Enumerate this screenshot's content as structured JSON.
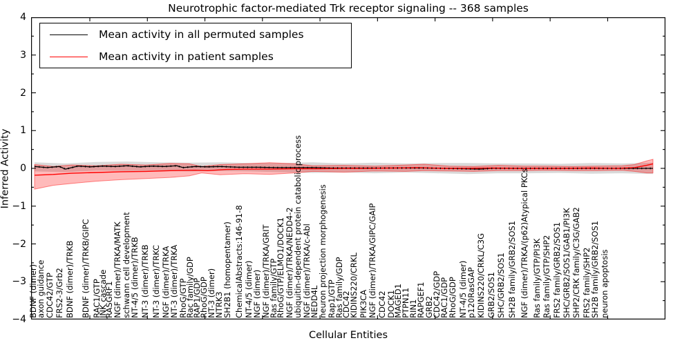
{
  "title": "Neurotrophic factor-mediated Trk receptor signaling -- 368 samples",
  "legend": {
    "items": [
      {
        "label": "Mean activity in all permuted samples",
        "color": "#000000"
      },
      {
        "label": "Mean activity in patient samples",
        "color": "#ff0000"
      }
    ]
  },
  "axes": {
    "ylabel": "Inferred Activity",
    "xlabel": "Cellular Entities",
    "yticks": [
      "4",
      "3",
      "2",
      "1",
      "0",
      "−1",
      "−2",
      "−3",
      "−4"
    ]
  },
  "chart_data": {
    "type": "line",
    "title": "Neurotrophic factor-mediated Trk receptor signaling -- 368 samples",
    "xlabel": "Cellular Entities",
    "ylabel": "Inferred Activity",
    "ylim": [
      -4,
      4
    ],
    "x_unit": "percent of x-axis width (category axis, labels rotated 90)",
    "grid": false,
    "legend_position": "upper left",
    "colors": {
      "permuted": "#000000",
      "patient": "#ff0000",
      "permuted_band": "rgba(0,0,0,0.15)",
      "patient_band": "rgba(255,0,0,0.27)"
    },
    "series": [
      {
        "name": "Mean activity in all permuted samples",
        "color": "#000000",
        "points": [
          [
            0,
            0.05
          ],
          [
            2,
            0.02
          ],
          [
            4,
            0.05
          ],
          [
            5,
            -0.02
          ],
          [
            7,
            0.06
          ],
          [
            9,
            0.04
          ],
          [
            11,
            0.06
          ],
          [
            13,
            0.05
          ],
          [
            15,
            0.07
          ],
          [
            17,
            0.04
          ],
          [
            19,
            0.06
          ],
          [
            21,
            0.05
          ],
          [
            23,
            0.07
          ],
          [
            24,
            0.02
          ],
          [
            26,
            0.05
          ],
          [
            28,
            0.04
          ],
          [
            30,
            0.05
          ],
          [
            33,
            0.03
          ],
          [
            36,
            0.03
          ],
          [
            39,
            0.02
          ],
          [
            42,
            0.02
          ],
          [
            45,
            0.02
          ],
          [
            48,
            0.01
          ],
          [
            51,
            0.01
          ],
          [
            54,
            0.01
          ],
          [
            57,
            0.01
          ],
          [
            60,
            0.01
          ],
          [
            63,
            0.01
          ],
          [
            66,
            0.0
          ],
          [
            69,
            -0.01
          ],
          [
            72,
            -0.02
          ],
          [
            74,
            0.0
          ],
          [
            77,
            0.0
          ],
          [
            80,
            0.0
          ],
          [
            83,
            0.0
          ],
          [
            86,
            0.0
          ],
          [
            89,
            0.0
          ],
          [
            92,
            0.0
          ],
          [
            95,
            0.0
          ],
          [
            98,
            0.0
          ],
          [
            100,
            0.0
          ]
        ]
      },
      {
        "name": "Mean activity in patient samples",
        "color": "#ff0000",
        "points": [
          [
            0,
            -0.18
          ],
          [
            3,
            -0.16
          ],
          [
            6,
            -0.13
          ],
          [
            10,
            -0.11
          ],
          [
            14,
            -0.09
          ],
          [
            18,
            -0.08
          ],
          [
            22,
            -0.06
          ],
          [
            26,
            -0.05
          ],
          [
            28,
            -0.06
          ],
          [
            31,
            -0.03
          ],
          [
            34,
            -0.02
          ],
          [
            38,
            -0.02
          ],
          [
            42,
            -0.01
          ],
          [
            46,
            -0.01
          ],
          [
            50,
            0.0
          ],
          [
            54,
            0.0
          ],
          [
            58,
            0.01
          ],
          [
            62,
            0.02
          ],
          [
            66,
            0.0
          ],
          [
            70,
            0.0
          ],
          [
            74,
            0.01
          ],
          [
            78,
            0.0
          ],
          [
            82,
            0.0
          ],
          [
            86,
            0.0
          ],
          [
            90,
            0.01
          ],
          [
            94,
            0.0
          ],
          [
            97,
            0.02
          ],
          [
            99,
            0.08
          ],
          [
            100,
            0.12
          ]
        ]
      }
    ],
    "bands": [
      {
        "name": "permuted-confidence-band",
        "upper": [
          [
            0,
            0.16
          ],
          [
            5,
            0.13
          ],
          [
            10,
            0.17
          ],
          [
            15,
            0.18
          ],
          [
            20,
            0.16
          ],
          [
            25,
            0.15
          ],
          [
            30,
            0.16
          ],
          [
            35,
            0.14
          ],
          [
            40,
            0.14
          ],
          [
            45,
            0.16
          ],
          [
            50,
            0.13
          ],
          [
            55,
            0.15
          ],
          [
            60,
            0.13
          ],
          [
            65,
            0.14
          ],
          [
            70,
            0.14
          ],
          [
            75,
            0.13
          ],
          [
            80,
            0.13
          ],
          [
            85,
            0.12
          ],
          [
            90,
            0.14
          ],
          [
            95,
            0.13
          ],
          [
            100,
            0.15
          ]
        ],
        "lower": [
          [
            0,
            -0.08
          ],
          [
            5,
            -0.1
          ],
          [
            10,
            -0.06
          ],
          [
            15,
            -0.07
          ],
          [
            20,
            -0.06
          ],
          [
            25,
            -0.08
          ],
          [
            30,
            -0.07
          ],
          [
            35,
            -0.08
          ],
          [
            40,
            -0.1
          ],
          [
            45,
            -0.12
          ],
          [
            50,
            -0.11
          ],
          [
            55,
            -0.13
          ],
          [
            60,
            -0.11
          ],
          [
            65,
            -0.13
          ],
          [
            70,
            -0.15
          ],
          [
            75,
            -0.13
          ],
          [
            80,
            -0.13
          ],
          [
            85,
            -0.12
          ],
          [
            90,
            -0.14
          ],
          [
            95,
            -0.13
          ],
          [
            100,
            -0.15
          ]
        ]
      },
      {
        "name": "patient-confidence-band",
        "upper": [
          [
            0,
            0.1
          ],
          [
            3,
            0.05
          ],
          [
            6,
            0.09
          ],
          [
            10,
            0.07
          ],
          [
            14,
            0.11
          ],
          [
            18,
            0.09
          ],
          [
            22,
            0.13
          ],
          [
            25,
            0.12
          ],
          [
            27,
            0.05
          ],
          [
            30,
            0.1
          ],
          [
            34,
            0.12
          ],
          [
            38,
            0.15
          ],
          [
            42,
            0.12
          ],
          [
            45,
            0.07
          ],
          [
            50,
            0.08
          ],
          [
            55,
            0.06
          ],
          [
            60,
            0.09
          ],
          [
            63,
            0.11
          ],
          [
            67,
            0.06
          ],
          [
            71,
            0.05
          ],
          [
            75,
            0.08
          ],
          [
            79,
            0.06
          ],
          [
            83,
            0.06
          ],
          [
            87,
            0.05
          ],
          [
            91,
            0.06
          ],
          [
            95,
            0.07
          ],
          [
            97,
            0.1
          ],
          [
            99,
            0.2
          ],
          [
            100,
            0.24
          ]
        ],
        "lower": [
          [
            0,
            -0.55
          ],
          [
            3,
            -0.45
          ],
          [
            6,
            -0.4
          ],
          [
            10,
            -0.34
          ],
          [
            14,
            -0.3
          ],
          [
            18,
            -0.27
          ],
          [
            22,
            -0.24
          ],
          [
            25,
            -0.2
          ],
          [
            27,
            -0.12
          ],
          [
            30,
            -0.17
          ],
          [
            34,
            -0.14
          ],
          [
            38,
            -0.16
          ],
          [
            42,
            -0.12
          ],
          [
            45,
            -0.08
          ],
          [
            50,
            -0.1
          ],
          [
            55,
            -0.07
          ],
          [
            60,
            -0.08
          ],
          [
            63,
            -0.06
          ],
          [
            67,
            -0.07
          ],
          [
            71,
            -0.08
          ],
          [
            75,
            -0.06
          ],
          [
            79,
            -0.06
          ],
          [
            83,
            -0.05
          ],
          [
            87,
            -0.06
          ],
          [
            91,
            -0.06
          ],
          [
            95,
            -0.05
          ],
          [
            97,
            -0.08
          ],
          [
            99,
            -0.12
          ],
          [
            100,
            -0.12
          ]
        ]
      }
    ],
    "x_tick_labels": [
      {
        "p": 0.5,
        "t": "BDNF (dimer)"
      },
      {
        "p": 1.8,
        "t": "axon guidance"
      },
      {
        "p": 3.2,
        "t": "CDC42/GTP"
      },
      {
        "p": 4.8,
        "t": "FRS2-3/Grb2"
      },
      {
        "p": 6.5,
        "t": "BDNF (dimer)/TRKB"
      },
      {
        "p": 9.0,
        "t": "BDNF (dimer)/TRKB/GIPC"
      },
      {
        "p": 10.8,
        "t": "RAC1/GTP"
      },
      {
        "p": 11.8,
        "t": "JNK cascade"
      },
      {
        "p": 12.8,
        "t": "RASGRF1"
      },
      {
        "p": 14.2,
        "t": "NGF (dimer)/TRKA/MATK"
      },
      {
        "p": 15.6,
        "t": "schwann cell development"
      },
      {
        "p": 17.0,
        "t": "NT-4/5 (dimer)/TRKB"
      },
      {
        "p": 18.6,
        "t": "NT-3 (dimer)/TRKB"
      },
      {
        "p": 20.4,
        "t": "NT-3 (dimer)/TRKC"
      },
      {
        "p": 22.0,
        "t": "NGF (dimer)/TRKA"
      },
      {
        "p": 23.4,
        "t": "NT-3 (dimer)/TRKA"
      },
      {
        "p": 24.8,
        "t": "RhoG/GTP"
      },
      {
        "p": 25.9,
        "t": "Rac family/GDP"
      },
      {
        "p": 27.0,
        "t": "RAP1/GDP"
      },
      {
        "p": 28.2,
        "t": "RhoG/GDP"
      },
      {
        "p": 29.4,
        "t": "NT-3 (dimer)"
      },
      {
        "p": 30.6,
        "t": "NTRK3"
      },
      {
        "p": 32.0,
        "t": "SH2B1 (homopentamer)"
      },
      {
        "p": 33.8,
        "t": "ChemicalAbstracts:146-91-8"
      },
      {
        "p": 35.4,
        "t": "NT-4/5 (dimer)"
      },
      {
        "p": 36.8,
        "t": "NGF (dimer)"
      },
      {
        "p": 38.2,
        "t": "NGF (dimer)/TRKA/GRIT"
      },
      {
        "p": 39.4,
        "t": "Ras family/GTP"
      },
      {
        "p": 40.6,
        "t": "RhoG/GTP/ELMO1/DOCK1"
      },
      {
        "p": 42.0,
        "t": "NGF (dimer)/TRKA/NEDD4-2"
      },
      {
        "p": 43.4,
        "t": "ubiquitin-dependent protein catabolic process"
      },
      {
        "p": 44.8,
        "t": "NGF (dimer)/TRKA/c-Abl"
      },
      {
        "p": 46.0,
        "t": "NEDD4L"
      },
      {
        "p": 47.4,
        "t": "neuron projection morphogenesis"
      },
      {
        "p": 48.8,
        "t": "Rap1/GTP"
      },
      {
        "p": 50.0,
        "t": "Ras family/GDP"
      },
      {
        "p": 51.2,
        "t": "CDC42"
      },
      {
        "p": 52.4,
        "t": "KIDINS220/CRKL"
      },
      {
        "p": 54.0,
        "t": "PIK3CA"
      },
      {
        "p": 55.4,
        "t": "NGF (dimer)/TRKA/GIPC/GAIP"
      },
      {
        "p": 57.0,
        "t": "CDC42"
      },
      {
        "p": 58.4,
        "t": "DOCK1"
      },
      {
        "p": 59.6,
        "t": "MAGED1"
      },
      {
        "p": 60.8,
        "t": "PTPN11"
      },
      {
        "p": 62.0,
        "t": "RIN1"
      },
      {
        "p": 63.2,
        "t": "RAPGEF1"
      },
      {
        "p": 64.6,
        "t": "GRB2"
      },
      {
        "p": 65.8,
        "t": "CDC42/GDP"
      },
      {
        "p": 67.0,
        "t": "RAC1/GDP"
      },
      {
        "p": 68.4,
        "t": "RhoG/GDP"
      },
      {
        "p": 70.0,
        "t": "NT-4/5 (dimer)"
      },
      {
        "p": 71.4,
        "t": "p120RasGAP"
      },
      {
        "p": 73.0,
        "t": "KIDINS220/CRKL/C3G"
      },
      {
        "p": 74.6,
        "t": "GRB2/SOS1"
      },
      {
        "p": 76.2,
        "t": "SHC/GRB2/SOS1"
      },
      {
        "p": 78.0,
        "t": "SH2B family/GRB2/SOS1"
      },
      {
        "p": 80.0,
        "t": "NGF (dimer)/TRKA/(p62)Atypical PKCs"
      },
      {
        "p": 82.0,
        "t": "Ras family/GTP/PI3K"
      },
      {
        "p": 83.6,
        "t": "Ras family/GTP/SHP2"
      },
      {
        "p": 85.2,
        "t": "FRS2 family/GRB2/SOS1"
      },
      {
        "p": 86.8,
        "t": "SHC/GRB2/SOS1/GAB1/PI3K"
      },
      {
        "p": 88.4,
        "t": "SHP2/CRK family/C3G/GAB2"
      },
      {
        "p": 90.0,
        "t": "FRS2 family/SHP2"
      },
      {
        "p": 91.4,
        "t": "SH2B family/GRB2/SOS1"
      },
      {
        "p": 93.0,
        "t": "neuron apoptosis"
      }
    ]
  }
}
